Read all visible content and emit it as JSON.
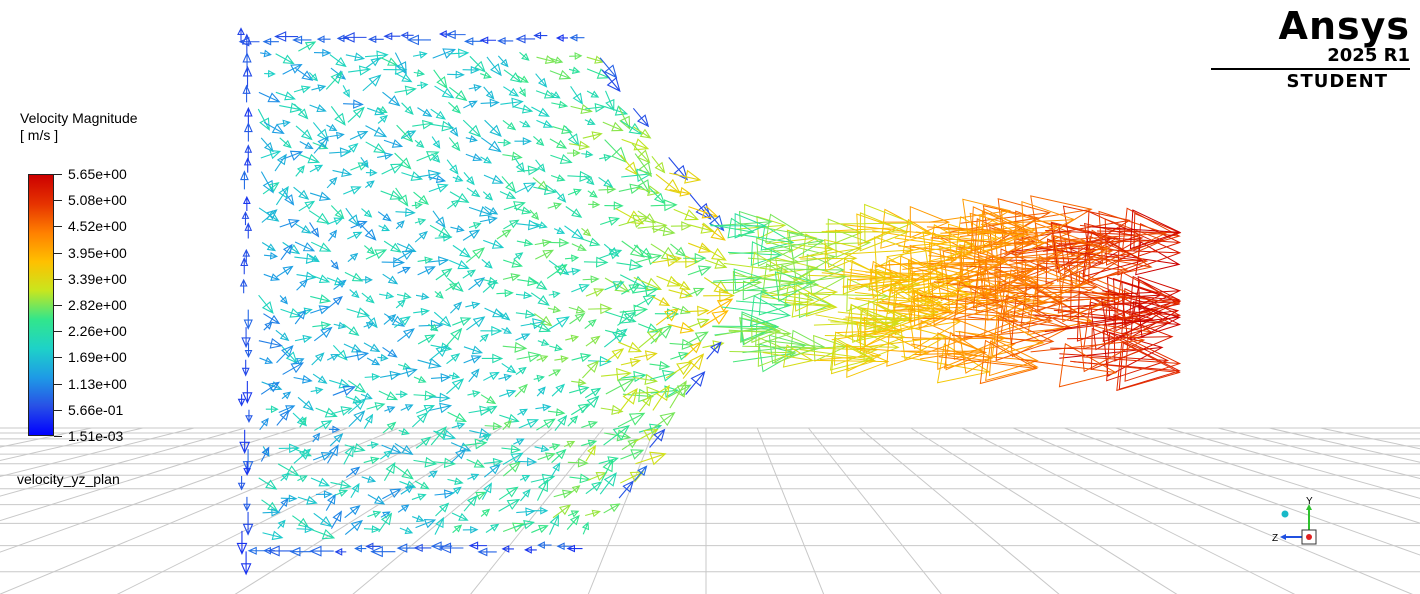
{
  "legend": {
    "title": "Velocity Magnitude",
    "unit": "[ m/s ]",
    "ticks": [
      "5.65e+00",
      "5.08e+00",
      "4.52e+00",
      "3.95e+00",
      "3.39e+00",
      "2.82e+00",
      "2.26e+00",
      "1.69e+00",
      "1.13e+00",
      "5.66e-01",
      "1.51e-03"
    ],
    "min": 0.00151,
    "max": 5.65,
    "colormap": [
      "#cc0000",
      "#e63300",
      "#ff8000",
      "#ffc000",
      "#c8e61e",
      "#32e68c",
      "#1ed2c8",
      "#1e9be6",
      "#2850e6",
      "#0000ff"
    ]
  },
  "object_label": "velocity_yz_plan",
  "logo": {
    "name": "Ansys",
    "version": "2025 R1",
    "edition": "STUDENT"
  },
  "triad": {
    "axis_y": "Y",
    "axis_z": "Z"
  }
}
